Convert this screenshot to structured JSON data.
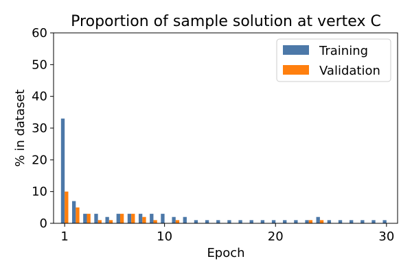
{
  "chart_data": {
    "type": "bar",
    "title": "Proportion of sample solution at vertex C",
    "xlabel": "Epoch",
    "ylabel": "% in dataset",
    "xlim": [
      0,
      31
    ],
    "ylim": [
      0,
      60
    ],
    "x_ticks": [
      1,
      10,
      20,
      30
    ],
    "y_ticks": [
      0,
      10,
      20,
      30,
      40,
      50,
      60
    ],
    "grid": false,
    "legend_position": "top-right",
    "x": [
      1,
      2,
      3,
      4,
      5,
      6,
      7,
      8,
      9,
      10,
      11,
      12,
      13,
      14,
      15,
      16,
      17,
      18,
      19,
      20,
      21,
      22,
      23,
      24,
      25,
      26,
      27,
      28,
      29,
      30
    ],
    "series": [
      {
        "name": "Training",
        "color": "#4c78a8",
        "values": [
          33,
          7,
          3,
          3,
          2,
          3,
          3,
          3,
          3,
          3,
          2,
          2,
          1,
          1,
          1,
          1,
          1,
          1,
          1,
          1,
          1,
          1,
          1,
          2,
          1,
          1,
          1,
          1,
          1,
          1
        ]
      },
      {
        "name": "Validation",
        "color": "#ff7f0e",
        "values": [
          10,
          5,
          3,
          1,
          1,
          3,
          3,
          2,
          1,
          0,
          1,
          0,
          0,
          0,
          0,
          0,
          0,
          0,
          0,
          0,
          0,
          0,
          1,
          1,
          0,
          0,
          0,
          0,
          0,
          0
        ]
      }
    ]
  }
}
